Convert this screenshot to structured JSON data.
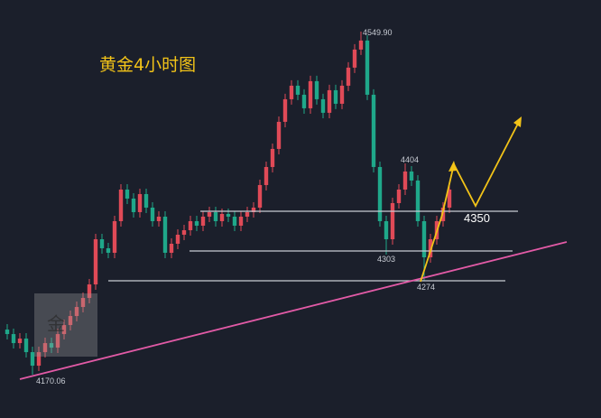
{
  "chart_data": {
    "type": "candlestick",
    "title": "黄金4小时图",
    "watermark": "金",
    "up_color": "#e04a57",
    "down_color": "#1fa88a",
    "annotations": [
      "4549.90",
      "4404",
      "4303",
      "4274",
      "4350",
      "4170.06"
    ],
    "ohlc": [
      [
        4220,
        4226,
        4209,
        4215
      ],
      [
        4215,
        4221,
        4199,
        4205
      ],
      [
        4205,
        4216,
        4199,
        4210
      ],
      [
        4210,
        4216,
        4189,
        4195
      ],
      [
        4195,
        4201,
        4170.06,
        4180
      ],
      [
        4180,
        4201,
        4174,
        4195
      ],
      [
        4195,
        4211,
        4189,
        4205
      ],
      [
        4205,
        4211,
        4194,
        4200
      ],
      [
        4200,
        4221,
        4194,
        4215
      ],
      [
        4215,
        4231,
        4209,
        4225
      ],
      [
        4225,
        4241,
        4219,
        4235
      ],
      [
        4235,
        4251,
        4229,
        4245
      ],
      [
        4245,
        4261,
        4239,
        4255
      ],
      [
        4255,
        4276,
        4249,
        4270
      ],
      [
        4270,
        4326,
        4264,
        4320
      ],
      [
        4320,
        4326,
        4304,
        4310
      ],
      [
        4310,
        4316,
        4299,
        4305
      ],
      [
        4305,
        4346,
        4299,
        4340
      ],
      [
        4340,
        4381,
        4334,
        4375
      ],
      [
        4375,
        4381,
        4359,
        4365
      ],
      [
        4365,
        4371,
        4344,
        4350
      ],
      [
        4350,
        4376,
        4344,
        4370
      ],
      [
        4370,
        4376,
        4349,
        4355
      ],
      [
        4355,
        4361,
        4334,
        4340
      ],
      [
        4340,
        4351,
        4334,
        4345
      ],
      [
        4345,
        4351,
        4299,
        4305
      ],
      [
        4305,
        4321,
        4299,
        4315
      ],
      [
        4315,
        4331,
        4309,
        4325
      ],
      [
        4325,
        4336,
        4319,
        4330
      ],
      [
        4330,
        4346,
        4324,
        4340
      ],
      [
        4340,
        4346,
        4329,
        4335
      ],
      [
        4335,
        4351,
        4329,
        4345
      ],
      [
        4345,
        4356,
        4339,
        4350
      ],
      [
        4350,
        4356,
        4334,
        4340
      ],
      [
        4340,
        4354,
        4334,
        4348
      ],
      [
        4348,
        4354,
        4339,
        4345
      ],
      [
        4345,
        4351,
        4329,
        4335
      ],
      [
        4335,
        4351,
        4329,
        4345
      ],
      [
        4345,
        4356,
        4339,
        4350
      ],
      [
        4350,
        4361,
        4344,
        4355
      ],
      [
        4355,
        4386,
        4349,
        4380
      ],
      [
        4380,
        4406,
        4374,
        4400
      ],
      [
        4400,
        4426,
        4394,
        4420
      ],
      [
        4420,
        4456,
        4414,
        4450
      ],
      [
        4450,
        4481,
        4444,
        4475
      ],
      [
        4475,
        4496,
        4469,
        4490
      ],
      [
        4490,
        4496,
        4474,
        4480
      ],
      [
        4480,
        4486,
        4459,
        4465
      ],
      [
        4465,
        4501,
        4459,
        4495
      ],
      [
        4495,
        4501,
        4469,
        4475
      ],
      [
        4475,
        4481,
        4454,
        4460
      ],
      [
        4460,
        4491,
        4454,
        4485
      ],
      [
        4485,
        4491,
        4464,
        4470
      ],
      [
        4470,
        4496,
        4464,
        4490
      ],
      [
        4490,
        4516,
        4484,
        4510
      ],
      [
        4510,
        4536,
        4504,
        4530
      ],
      [
        4530,
        4549.9,
        4524,
        4540
      ],
      [
        4540,
        4546,
        4474,
        4480
      ],
      [
        4480,
        4486,
        4394,
        4400
      ],
      [
        4400,
        4406,
        4334,
        4340
      ],
      [
        4340,
        4346,
        4303,
        4320
      ],
      [
        4320,
        4366,
        4314,
        4360
      ],
      [
        4360,
        4381,
        4354,
        4375
      ],
      [
        4375,
        4404,
        4369,
        4395
      ],
      [
        4395,
        4401,
        4379,
        4385
      ],
      [
        4385,
        4391,
        4334,
        4340
      ],
      [
        4340,
        4346,
        4274,
        4300
      ],
      [
        4300,
        4326,
        4294,
        4320
      ],
      [
        4320,
        4346,
        4314,
        4340
      ],
      [
        4340,
        4361,
        4334,
        4355
      ],
      [
        4355,
        4381,
        4349,
        4375
      ]
    ]
  }
}
